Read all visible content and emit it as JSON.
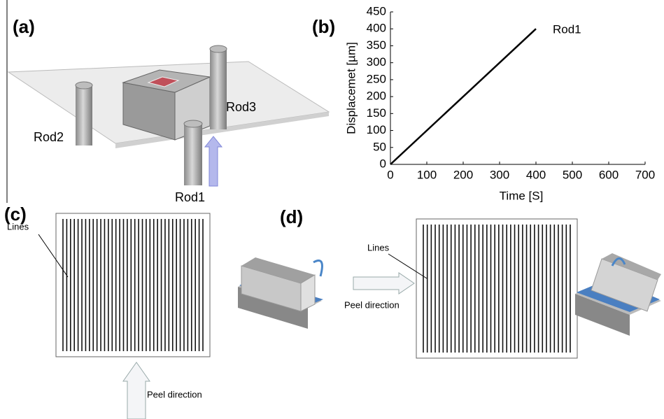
{
  "panels": {
    "a": {
      "label": "(a)",
      "rods": [
        "Rod1",
        "Rod2",
        "Rod3"
      ]
    },
    "c": {
      "label": "(c)",
      "lines_label": "Lines",
      "peel_label": "Peel direction"
    },
    "d": {
      "label": "(d)",
      "lines_label": "Lines",
      "peel_label": "Peel direction"
    }
  },
  "chart_data": {
    "type": "line",
    "label": "(b)",
    "xlabel": "Time [S]",
    "ylabel": "Displacemet [µm]",
    "x": [
      0,
      400
    ],
    "series": [
      {
        "name": "Rod1",
        "color": "#000000",
        "values": [
          0,
          400
        ]
      }
    ],
    "xlim": [
      0,
      700
    ],
    "xticks": [
      0,
      100,
      200,
      300,
      400,
      500,
      600,
      700
    ],
    "ylim": [
      0,
      450
    ],
    "yticks": [
      0,
      50,
      100,
      150,
      200,
      250,
      300,
      350,
      400,
      450
    ]
  }
}
